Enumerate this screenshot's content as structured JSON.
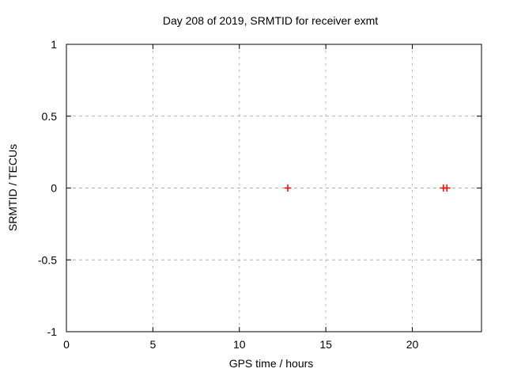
{
  "chart_data": {
    "type": "scatter",
    "title": "Day 208 of 2019, SRMTID for receiver exmt",
    "xlabel": "GPS time / hours",
    "ylabel": "SRMTID / TECUs",
    "xlim": [
      0,
      24
    ],
    "ylim": [
      -1,
      1
    ],
    "xticks": [
      0,
      5,
      10,
      15,
      20
    ],
    "xtick_labels": [
      "0",
      "5",
      "10",
      "15",
      "20"
    ],
    "yticks": [
      1,
      0.5,
      0,
      -0.5,
      -1
    ],
    "ytick_labels": [
      "1",
      "0.5",
      "0",
      "-0.5",
      "-1"
    ],
    "grid": "dashed",
    "legend_position": "none",
    "series": [
      {
        "name": "SRMTID",
        "marker": "plus",
        "color": "#ff0000",
        "points": [
          {
            "x": 12.8,
            "y": 0.0
          },
          {
            "x": 21.8,
            "y": 0.0
          },
          {
            "x": 22.0,
            "y": 0.0
          }
        ]
      }
    ],
    "colors": {
      "background": "#ffffff",
      "axis": "#000000",
      "grid": "#b0b0b0",
      "text": "#000000"
    }
  }
}
